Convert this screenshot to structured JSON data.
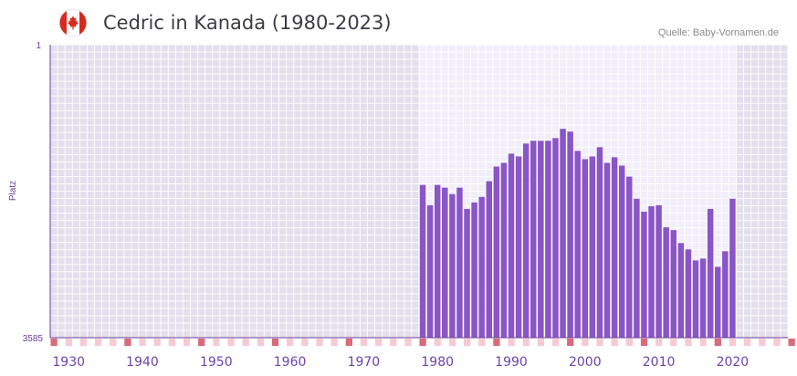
{
  "header": {
    "title": "Cedric in Kanada (1980-2023)",
    "source": "Quelle: Baby-Vornamen.de",
    "flag_icon": "canada-flag-icon"
  },
  "colors": {
    "bar": "#8a55c7",
    "plot_bg": "#e3dfec",
    "data_range_bg": "#f1eef9",
    "axis": "#6a3d9a",
    "tick_pink": "#f5cad3",
    "tick_red": "#d96a78"
  },
  "chart_data": {
    "type": "bar",
    "title": "Cedric in Kanada (1980-2023)",
    "ylabel": "Platz",
    "xlabel": "",
    "y_axis_inverted": true,
    "ylim": [
      1,
      3585
    ],
    "ytick_labels": [
      "1",
      "3585"
    ],
    "xlim": [
      1928,
      2028
    ],
    "xtick_labels": [
      "1930",
      "1940",
      "1950",
      "1960",
      "1970",
      "1980",
      "1990",
      "2000",
      "2010",
      "2020"
    ],
    "categories": [
      1978,
      1979,
      1980,
      1981,
      1982,
      1983,
      1984,
      1985,
      1986,
      1987,
      1988,
      1989,
      1990,
      1991,
      1992,
      1993,
      1994,
      1995,
      1996,
      1997,
      1998,
      1999,
      2000,
      2001,
      2002,
      2003,
      2004,
      2005,
      2006,
      2007,
      2008,
      2009,
      2010,
      2011,
      2012,
      2013,
      2014,
      2015,
      2016,
      2017,
      2018,
      2019,
      2020,
      2021,
      2022
    ],
    "values": [
      1716,
      1965,
      1716,
      1750,
      1829,
      1750,
      2010,
      1931,
      1863,
      1671,
      1491,
      1446,
      1334,
      1368,
      1210,
      1176,
      1176,
      1176,
      1143,
      1030,
      1064,
      1300,
      1401,
      1368,
      1255,
      1446,
      1378,
      1480,
      1615,
      1885,
      2044,
      1976,
      1965,
      2235,
      2269,
      2427,
      2505,
      2640,
      2617,
      2010,
      2719,
      2528,
      1885,
      null,
      null
    ]
  }
}
